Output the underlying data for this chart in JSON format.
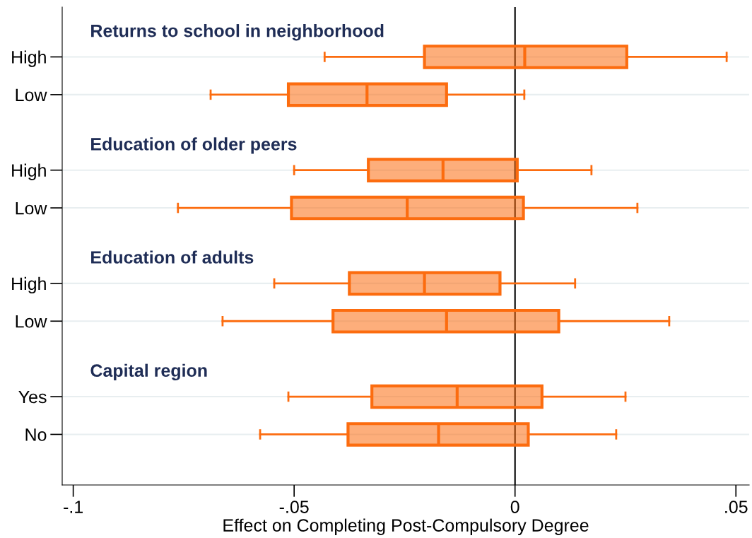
{
  "chart_data": {
    "type": "box",
    "orientation": "horizontal",
    "categories": [
      "High",
      "Low",
      "High",
      "Low",
      "High",
      "Low",
      "Yes",
      "No"
    ],
    "annotations": [
      "Returns to school in neighborhood",
      "Education of older peers",
      "Education of adults",
      "Capital region"
    ],
    "boxes": [
      {
        "low": -0.0431,
        "q1": -0.0205,
        "median": 0.0022,
        "q3": 0.0253,
        "high": 0.0479
      },
      {
        "low": -0.0689,
        "q1": -0.0513,
        "median": -0.0335,
        "q3": -0.0155,
        "high": 0.0021
      },
      {
        "low": -0.05,
        "q1": -0.0332,
        "median": -0.0163,
        "q3": 0.0005,
        "high": 0.0173
      },
      {
        "low": -0.0763,
        "q1": -0.0506,
        "median": -0.0244,
        "q3": 0.0019,
        "high": 0.0277
      },
      {
        "low": -0.0545,
        "q1": -0.0375,
        "median": -0.0205,
        "q3": -0.0034,
        "high": 0.0136
      },
      {
        "low": -0.0662,
        "q1": -0.0412,
        "median": -0.0155,
        "q3": 0.0099,
        "high": 0.0349
      },
      {
        "low": -0.0513,
        "q1": -0.0324,
        "median": -0.0131,
        "q3": 0.0061,
        "high": 0.025
      },
      {
        "low": -0.0577,
        "q1": -0.0378,
        "median": -0.0173,
        "q3": 0.003,
        "high": 0.0229
      }
    ],
    "color": "#fc6c0f",
    "xlabel": "Effect on Completing Post-Compulsory Degree",
    "xlim": [
      -0.1025,
      0.053
    ],
    "xticks": [
      {
        "value": -0.1,
        "label": "-.1"
      },
      {
        "value": -0.05,
        "label": "-.05"
      },
      0,
      {
        "value": 0.05,
        "label": ".05"
      }
    ],
    "ref_lines": [
      {
        "axis": "x",
        "value": 0,
        "color": "#000000"
      }
    ],
    "grid": "y"
  }
}
